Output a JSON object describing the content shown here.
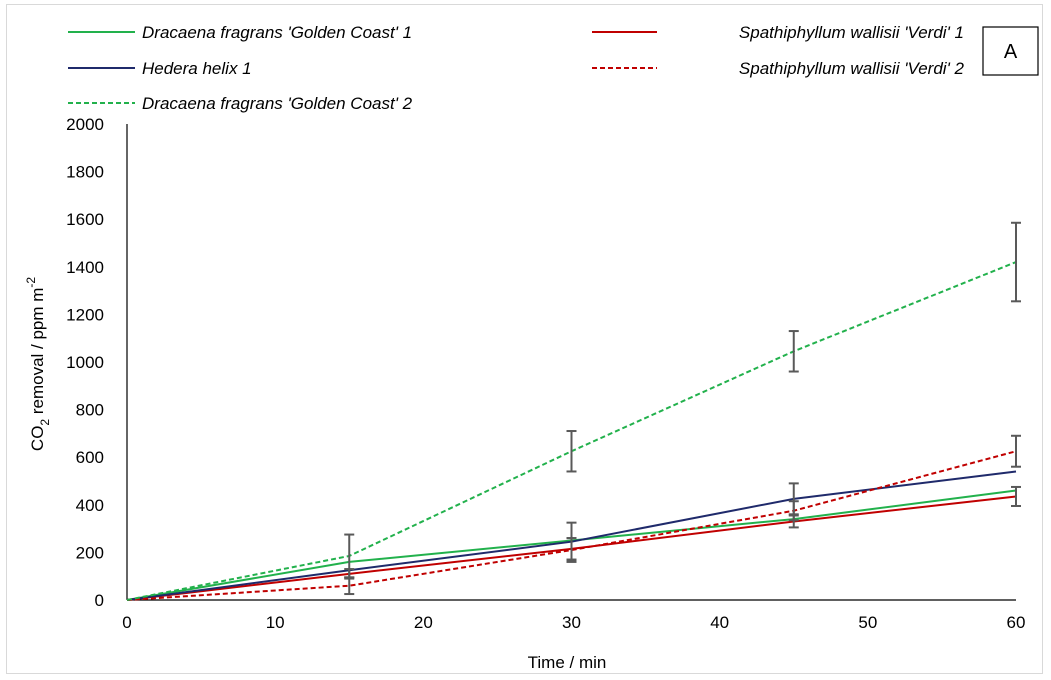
{
  "chart_data": {
    "type": "line",
    "panel_label": "A",
    "xlabel": "Time / min",
    "ylabel": {
      "prefix": "CO",
      "sub": "2",
      "middle": " removal  / ppm m",
      "sup": "-2"
    },
    "x_ticks": [
      "0",
      "10",
      "20",
      "30",
      "40",
      "50",
      "60"
    ],
    "y_ticks": [
      "0",
      "200",
      "400",
      "600",
      "800",
      "1000",
      "1200",
      "1400",
      "1600",
      "1800",
      "2000"
    ],
    "xlim": [
      0,
      60
    ],
    "ylim": [
      0,
      2000
    ],
    "grid": false,
    "legend_position": "top",
    "x": [
      0,
      15,
      30,
      45,
      60
    ],
    "series": [
      {
        "name": "Dracaena fragrans 'Golden Coast' 1",
        "color": "#22b14c",
        "dash": "solid",
        "values": [
          0,
          160,
          250,
          340,
          460
        ],
        "err": [
          null,
          null,
          null,
          null,
          null
        ]
      },
      {
        "name": "Spathiphyllum wallisii 'Verdi' 1",
        "color": "#c00000",
        "dash": "solid",
        "values": [
          0,
          110,
          215,
          330,
          435
        ],
        "err": [
          null,
          20,
          45,
          25,
          40
        ]
      },
      {
        "name": "Hedera helix 1",
        "color": "#1f2a6b",
        "dash": "solid",
        "values": [
          0,
          125,
          245,
          425,
          540
        ],
        "err": [
          null,
          null,
          80,
          65,
          null
        ]
      },
      {
        "name": "Spathiphyllum wallisii 'Verdi' 2",
        "color": "#c00000",
        "dash": "dashed",
        "values": [
          0,
          60,
          210,
          375,
          625
        ],
        "err": [
          null,
          35,
          50,
          40,
          65
        ]
      },
      {
        "name": "Dracaena fragrans 'Golden Coast' 2",
        "color": "#22b14c",
        "dash": "dashed",
        "values": [
          0,
          185,
          625,
          1045,
          1420
        ],
        "err": [
          null,
          90,
          85,
          85,
          165
        ]
      }
    ]
  }
}
